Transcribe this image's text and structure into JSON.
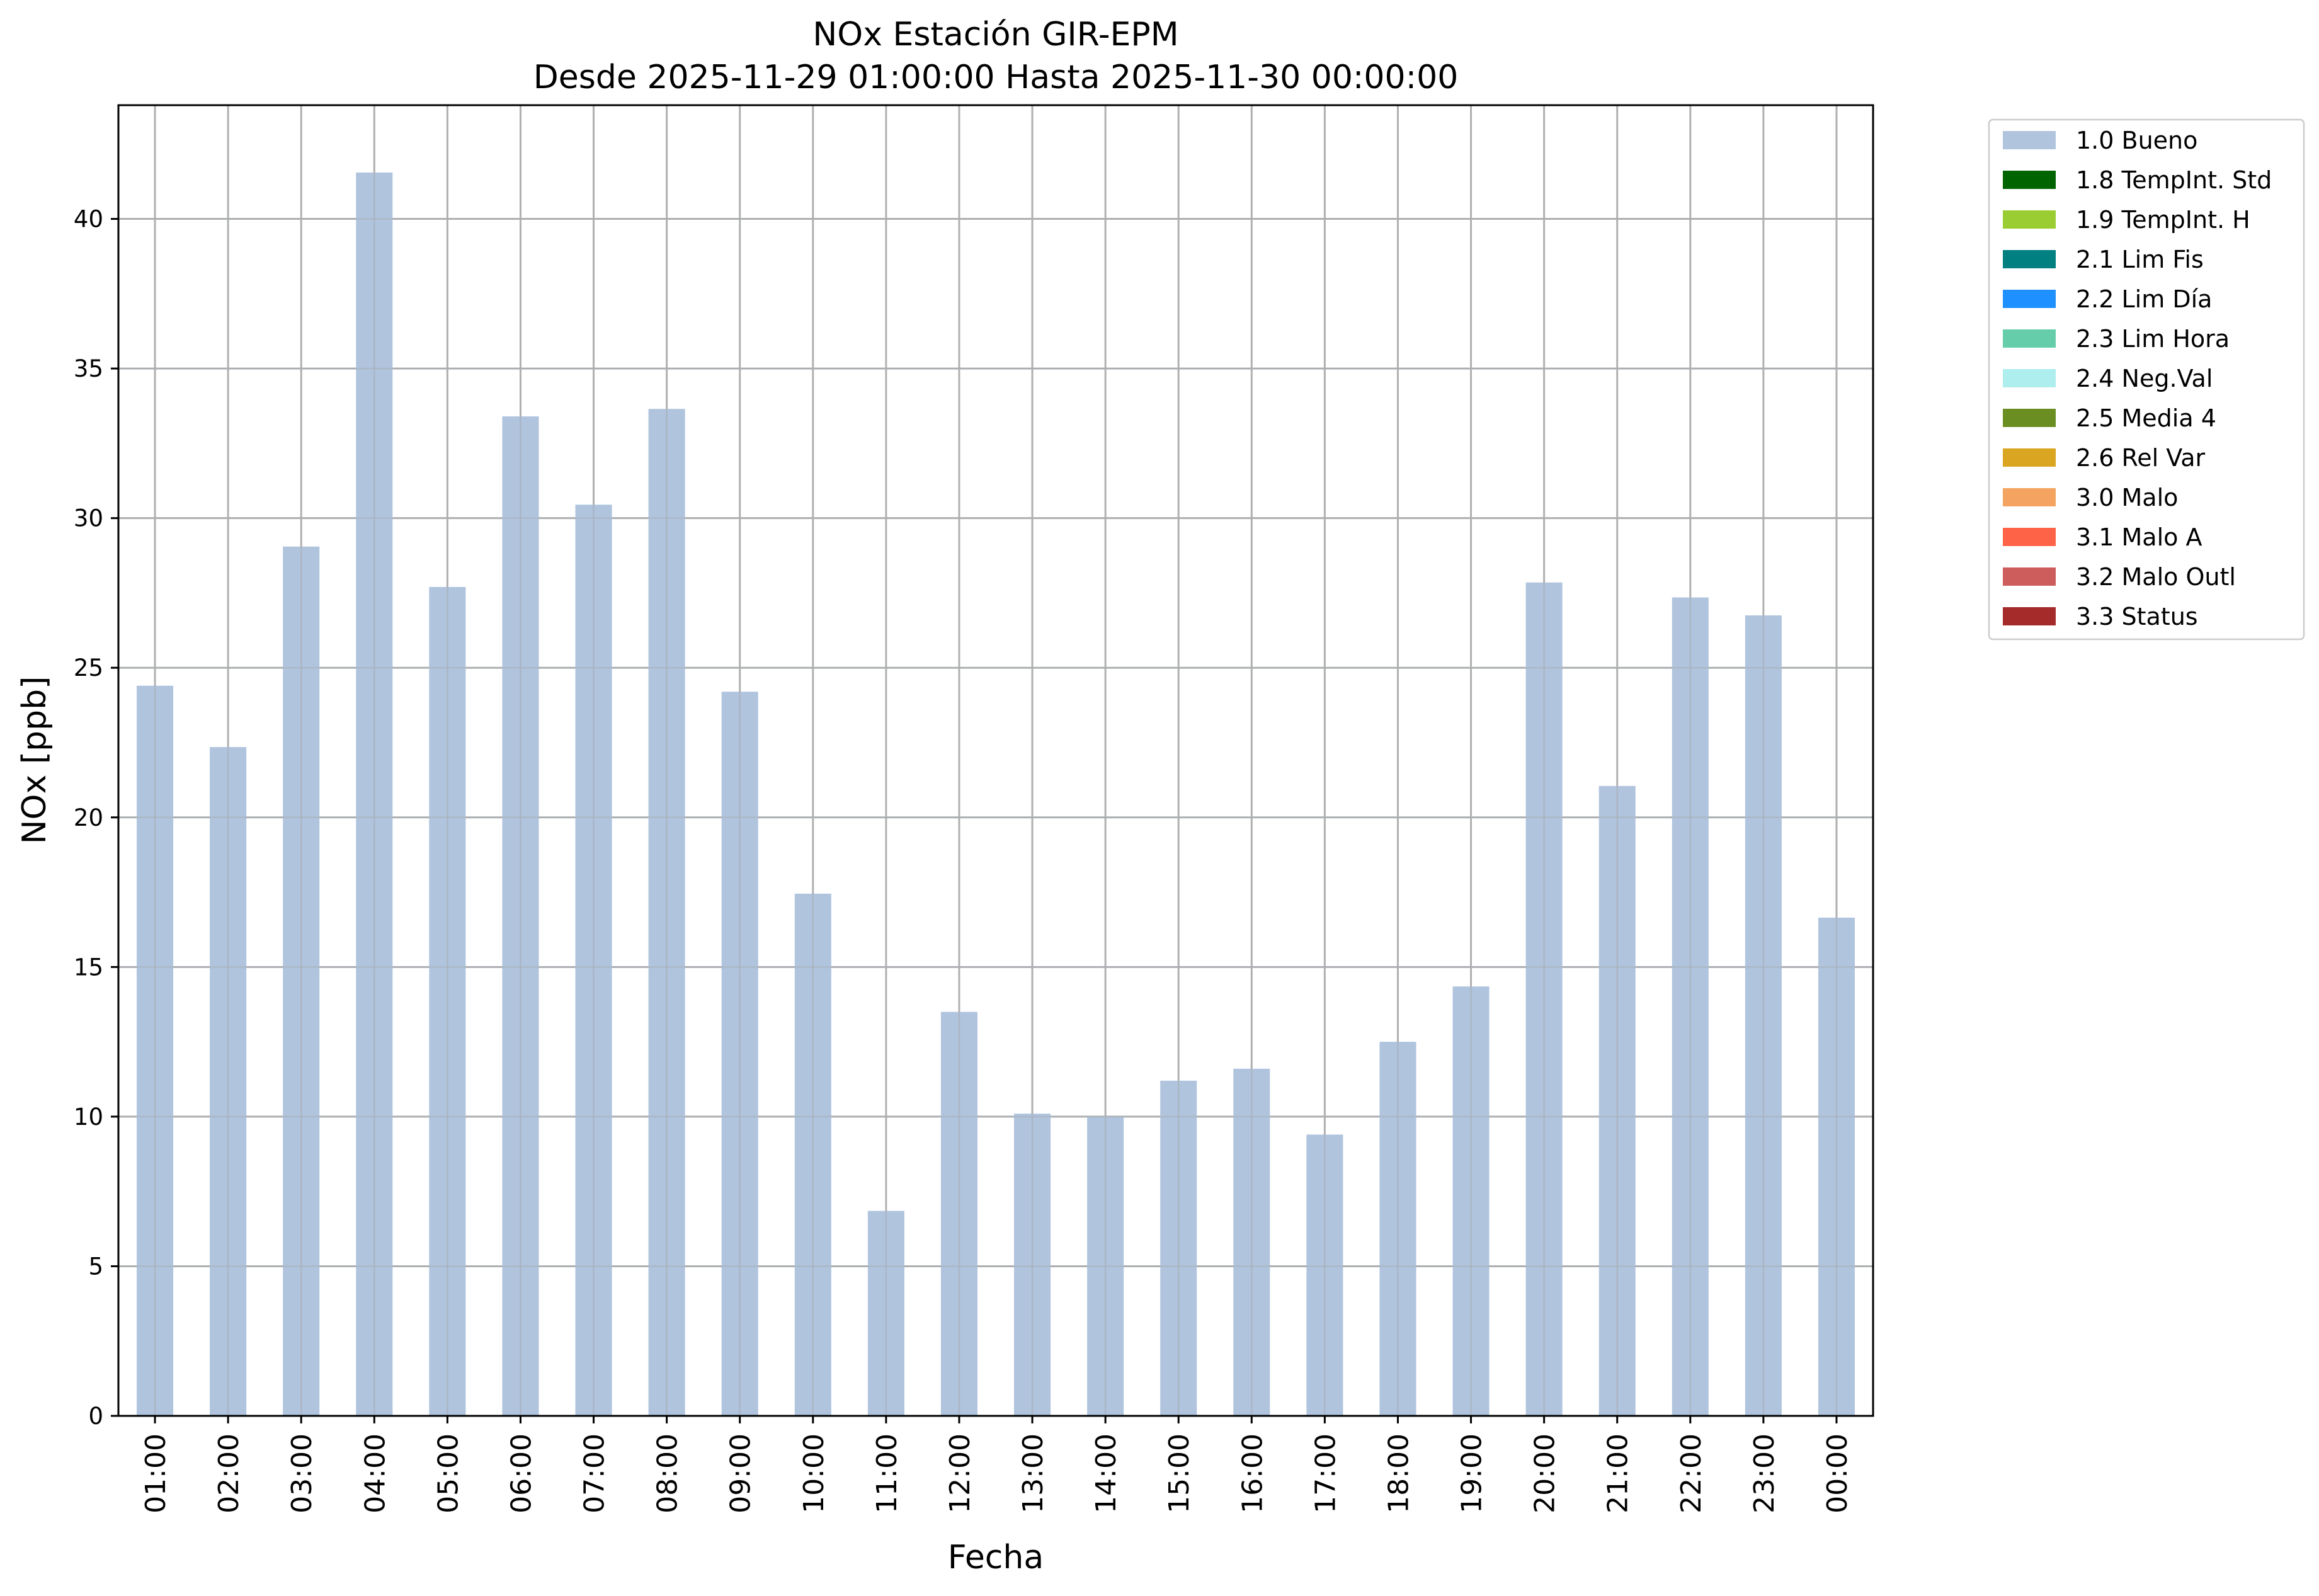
{
  "chart_data": {
    "type": "bar",
    "title": "NOx Estación GIR-EPM",
    "subtitle": "Desde 2025-11-29 01:00:00 Hasta 2025-11-30 00:00:00",
    "xlabel": "Fecha",
    "ylabel": "NOx [ppb]",
    "ylim": [
      0,
      43.8
    ],
    "yticks": [
      0,
      5,
      10,
      15,
      20,
      25,
      30,
      35,
      40
    ],
    "grid": true,
    "legend_position": "outside-top-right",
    "categories": [
      "01:00",
      "02:00",
      "03:00",
      "04:00",
      "05:00",
      "06:00",
      "07:00",
      "08:00",
      "09:00",
      "10:00",
      "11:00",
      "12:00",
      "13:00",
      "14:00",
      "15:00",
      "16:00",
      "17:00",
      "18:00",
      "19:00",
      "20:00",
      "21:00",
      "22:00",
      "23:00",
      "00:00"
    ],
    "series": [
      {
        "name": "1.0 Bueno",
        "color": "#b0c4de",
        "values": [
          24.4,
          22.35,
          29.05,
          41.55,
          27.7,
          33.4,
          30.45,
          33.65,
          24.2,
          17.45,
          6.85,
          13.5,
          10.1,
          10.0,
          11.2,
          11.6,
          9.4,
          12.5,
          14.35,
          27.85,
          21.05,
          27.35,
          26.75,
          16.65
        ]
      }
    ],
    "legend": [
      {
        "label": "1.0 Bueno",
        "color": "#b0c4de"
      },
      {
        "label": "1.8 TempInt. Std",
        "color": "#006400"
      },
      {
        "label": "1.9 TempInt. H",
        "color": "#9acd32"
      },
      {
        "label": "2.1 Lim Fis",
        "color": "#008080"
      },
      {
        "label": "2.2 Lim Día",
        "color": "#1e90ff"
      },
      {
        "label": "2.3 Lim Hora",
        "color": "#66cdaa"
      },
      {
        "label": "2.4 Neg.Val",
        "color": "#afeeee"
      },
      {
        "label": "2.5 Media 4",
        "color": "#6b8e23"
      },
      {
        "label": "2.6 Rel Var",
        "color": "#daa520"
      },
      {
        "label": "3.0 Malo",
        "color": "#f4a460"
      },
      {
        "label": "3.1 Malo A",
        "color": "#ff6347"
      },
      {
        "label": "3.2 Malo Outl",
        "color": "#cd5c5c"
      },
      {
        "label": "3.3 Status",
        "color": "#a52a2a"
      }
    ]
  }
}
